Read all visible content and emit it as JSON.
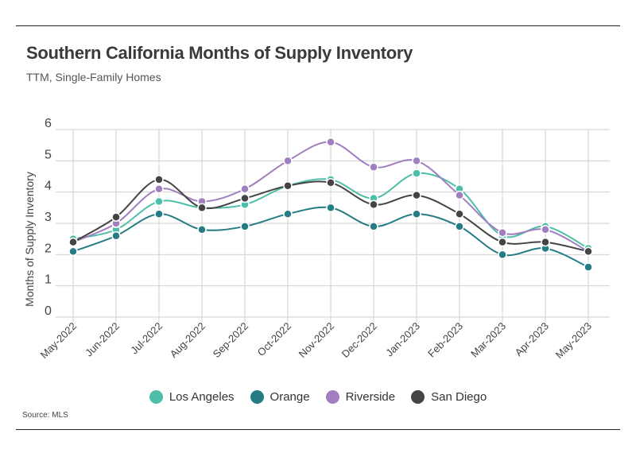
{
  "header": {
    "title": "Southern California Months of Supply Inventory",
    "subtitle": "TTM, Single-Family Homes"
  },
  "footer": {
    "source": "Source:  MLS"
  },
  "chart_data": {
    "type": "line",
    "title": "Southern California Months of Supply Inventory",
    "subtitle": "TTM, Single-Family Homes",
    "xlabel": "",
    "ylabel": "Months of Supply Inventory",
    "ylim": [
      0,
      6
    ],
    "yticks": [
      0,
      1,
      2,
      3,
      4,
      5,
      6
    ],
    "grid": true,
    "legend_position": "bottom",
    "categories": [
      "May-2022",
      "Jun-2022",
      "Jul-2022",
      "Aug-2022",
      "Sep-2022",
      "Oct-2022",
      "Nov-2022",
      "Dec-2022",
      "Jan-2023",
      "Feb-2023",
      "Mar-2023",
      "Apr-2023",
      "May-2023"
    ],
    "series": [
      {
        "name": "Los Angeles",
        "color": "#4dbfa8",
        "values": [
          2.5,
          2.8,
          3.7,
          3.5,
          3.6,
          4.2,
          4.4,
          3.8,
          4.6,
          4.1,
          2.6,
          2.9,
          2.2
        ]
      },
      {
        "name": "Orange",
        "color": "#267c85",
        "values": [
          2.1,
          2.6,
          3.3,
          2.8,
          2.9,
          3.3,
          3.5,
          2.9,
          3.3,
          2.9,
          2.0,
          2.2,
          1.6
        ]
      },
      {
        "name": "Riverside",
        "color": "#a07ec0",
        "values": [
          2.4,
          3.0,
          4.1,
          3.7,
          4.1,
          5.0,
          5.6,
          4.8,
          5.0,
          3.9,
          2.7,
          2.8,
          2.1
        ]
      },
      {
        "name": "San Diego",
        "color": "#444444",
        "values": [
          2.4,
          3.2,
          4.4,
          3.5,
          3.8,
          4.2,
          4.3,
          3.6,
          3.9,
          3.3,
          2.4,
          2.4,
          2.1
        ]
      }
    ]
  }
}
